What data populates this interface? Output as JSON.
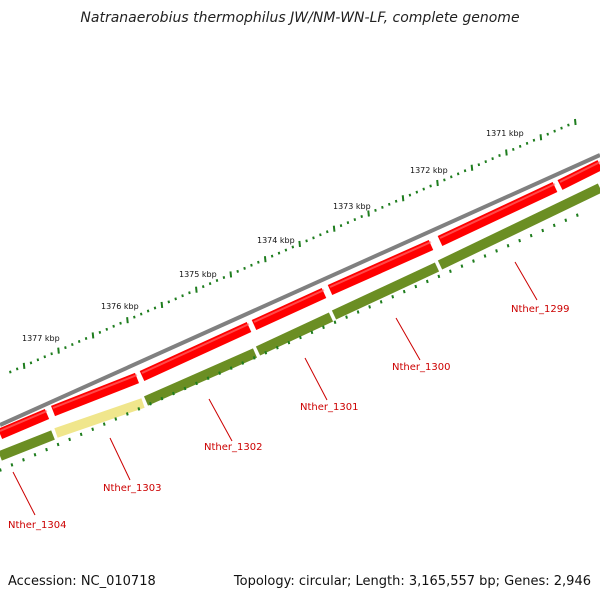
{
  "title": "Natranaerobius thermophilus JW/NM-WN-LF, complete genome",
  "footer": {
    "accession": "Accession: NC_010718",
    "summary": "Topology: circular; Length: 3,165,557 bp; Genes: 2,946"
  },
  "scale_labels": [
    "1371 kbp",
    "1372 kbp",
    "1373 kbp",
    "1374 kbp",
    "1375 kbp",
    "1376 kbp",
    "1377 kbp"
  ],
  "genes": [
    {
      "label": "Nther_1299",
      "strand": "-"
    },
    {
      "label": "Nther_1300",
      "strand": "-"
    },
    {
      "label": "Nther_1301",
      "strand": "-"
    },
    {
      "label": "Nther_1302",
      "strand": "-"
    },
    {
      "label": "Nther_1303",
      "strand": "-"
    },
    {
      "label": "Nther_1304",
      "strand": "-"
    }
  ],
  "colors": {
    "backbone": "#808080",
    "cds": "#ff0000",
    "gene": "#6b8e23",
    "highlight_gene": "#f0e68c",
    "tick": "#1e7d1e",
    "label": "#cc0000"
  }
}
